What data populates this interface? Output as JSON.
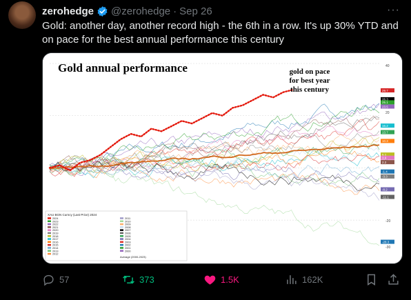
{
  "tweet": {
    "author_name": "zerohedge",
    "author_handle": "@zerohedge",
    "separator": "·",
    "date": "Sep 26",
    "more_label": "···",
    "text": "Gold: another day, another record high - the 6th in a row. It's up 30% YTD and on pace for the best annual performance this century"
  },
  "chart": {
    "title": "Gold annual performance",
    "annotation": [
      "gold on pace",
      "for best year",
      "this century"
    ],
    "legend_header": "XAU BGN Curncy (Last Price) 2024",
    "legend_years": [
      "2024",
      "2023",
      "2022",
      "2021",
      "2020",
      "2019",
      "2018",
      "2017",
      "2016",
      "2015",
      "2014",
      "2013",
      "2012",
      "2011",
      "2010",
      "2009",
      "2008",
      "2007",
      "2006",
      "2005",
      "2004",
      "2003",
      "2002",
      "2001",
      "2000"
    ],
    "legend_footer": "Average (2000-2023)",
    "y_ticks": [
      "40",
      "20",
      "0",
      "-20",
      "-30"
    ],
    "right_labels": [
      "29.7",
      "26.3",
      "25.1",
      "23.5",
      "16.2",
      "13.7",
      "10.3",
      "5.1",
      "3.9",
      "2.2",
      "-1.4",
      "-3.3",
      "-8.2",
      "-11.1",
      "-28.3"
    ]
  },
  "chart_data": {
    "type": "line",
    "title": "Gold annual performance",
    "series": [
      {
        "name": "2024",
        "values": [
          0,
          1,
          -1,
          2,
          3,
          5,
          8,
          11,
          13,
          12,
          15,
          14,
          16,
          18,
          17,
          19,
          21,
          20,
          23,
          24,
          26,
          28,
          27,
          29,
          30
        ]
      }
    ],
    "ylim": [
      -30,
      40
    ]
  },
  "actions": {
    "replies": "57",
    "retweets": "373",
    "likes": "1.5K",
    "views": "162K"
  },
  "colors": {
    "verified": "#1d9bf0",
    "retweet": "#00ba7c",
    "like": "#f91880",
    "gold_line": "#e3170a",
    "average_line": "#d2691e"
  }
}
